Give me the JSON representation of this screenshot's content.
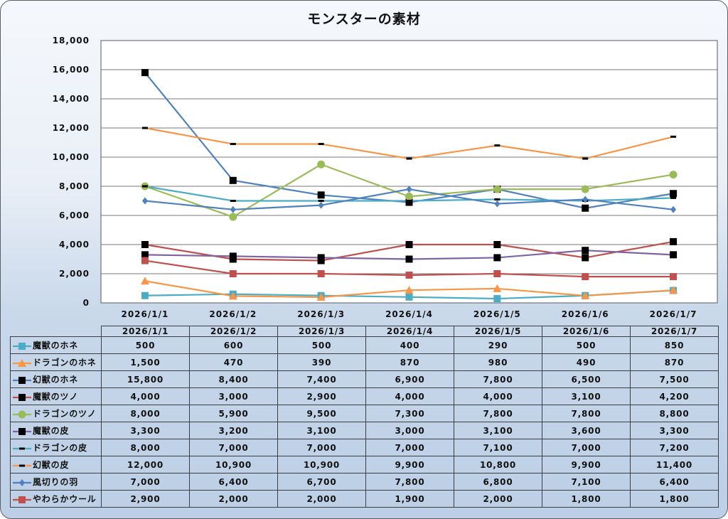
{
  "chart_data": {
    "type": "line",
    "title": "モンスターの素材",
    "xlabel": "",
    "ylabel": "",
    "ylim": [
      0,
      18000
    ],
    "yticks": [
      0,
      2000,
      4000,
      6000,
      8000,
      10000,
      12000,
      14000,
      16000,
      18000
    ],
    "ytick_labels": [
      "0",
      "2,000",
      "4,000",
      "6,000",
      "8,000",
      "10,000",
      "12,000",
      "14,000",
      "16,000",
      "18,000"
    ],
    "grid": true,
    "legend": "data-table-below",
    "categories": [
      "2026/1/1",
      "2026/1/2",
      "2026/1/3",
      "2026/1/4",
      "2026/1/5",
      "2026/1/6",
      "2026/1/7"
    ],
    "series": [
      {
        "name": "魔獣のホネ",
        "values": [
          500,
          600,
          500,
          400,
          290,
          500,
          850
        ],
        "labels": [
          "500",
          "600",
          "500",
          "400",
          "290",
          "500",
          "850"
        ],
        "color": "#4bacc6",
        "marker": "square",
        "marker_color": "#4bacc6"
      },
      {
        "name": "ドラゴンのホネ",
        "values": [
          1500,
          470,
          390,
          870,
          980,
          490,
          870
        ],
        "labels": [
          "1,500",
          "470",
          "390",
          "870",
          "980",
          "490",
          "870"
        ],
        "color": "#f79646",
        "marker": "triangle",
        "marker_color": "#f79646"
      },
      {
        "name": "幻獣のホネ",
        "values": [
          15800,
          8400,
          7400,
          6900,
          7800,
          6500,
          7500
        ],
        "labels": [
          "15,800",
          "8,400",
          "7,400",
          "6,900",
          "7,800",
          "6,500",
          "7,500"
        ],
        "color": "#4f81bd",
        "marker": "square",
        "marker_color": "#000000"
      },
      {
        "name": "魔獣のツノ",
        "values": [
          4000,
          3000,
          2900,
          4000,
          4000,
          3100,
          4200
        ],
        "labels": [
          "4,000",
          "3,000",
          "2,900",
          "4,000",
          "4,000",
          "3,100",
          "4,200"
        ],
        "color": "#c0504d",
        "marker": "square",
        "marker_color": "#000000"
      },
      {
        "name": "ドラゴンのツノ",
        "values": [
          8000,
          5900,
          9500,
          7300,
          7800,
          7800,
          8800
        ],
        "labels": [
          "8,000",
          "5,900",
          "9,500",
          "7,300",
          "7,800",
          "7,800",
          "8,800"
        ],
        "color": "#9bbb59",
        "marker": "circle",
        "marker_color": "#9bbb59"
      },
      {
        "name": "魔獣の皮",
        "values": [
          3300,
          3200,
          3100,
          3000,
          3100,
          3600,
          3300
        ],
        "labels": [
          "3,300",
          "3,200",
          "3,100",
          "3,000",
          "3,100",
          "3,600",
          "3,300"
        ],
        "color": "#8064a2",
        "marker": "square",
        "marker_color": "#000000"
      },
      {
        "name": "ドラゴンの皮",
        "values": [
          8000,
          7000,
          7000,
          7000,
          7100,
          7000,
          7200
        ],
        "labels": [
          "8,000",
          "7,000",
          "7,000",
          "7,000",
          "7,100",
          "7,000",
          "7,200"
        ],
        "color": "#4bacc6",
        "marker": "dash",
        "marker_color": "#000000"
      },
      {
        "name": "幻獣の皮",
        "values": [
          12000,
          10900,
          10900,
          9900,
          10800,
          9900,
          11400
        ],
        "labels": [
          "12,000",
          "10,900",
          "10,900",
          "9,900",
          "10,800",
          "9,900",
          "11,400"
        ],
        "color": "#f79646",
        "marker": "dash",
        "marker_color": "#000000"
      },
      {
        "name": "風切りの羽",
        "values": [
          7000,
          6400,
          6700,
          7800,
          6800,
          7100,
          6400
        ],
        "labels": [
          "7,000",
          "6,400",
          "6,700",
          "7,800",
          "6,800",
          "7,100",
          "6,400"
        ],
        "color": "#4f81bd",
        "marker": "diamond",
        "marker_color": "#4f81bd"
      },
      {
        "name": "やわらかウール",
        "values": [
          2900,
          2000,
          2000,
          1900,
          2000,
          1800,
          1800
        ],
        "labels": [
          "2,900",
          "2,000",
          "2,000",
          "1,900",
          "2,000",
          "1,800",
          "1,800"
        ],
        "color": "#c0504d",
        "marker": "square",
        "marker_color": "#c0504d"
      }
    ]
  }
}
